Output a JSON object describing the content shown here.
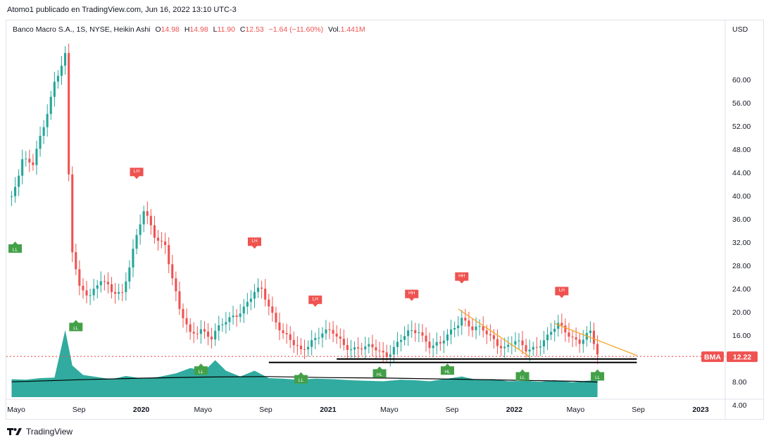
{
  "publisher": {
    "user": "Atomo1",
    "text": "publicado en TradingView.com, Jun 16, 2022 13:10 UTC-3"
  },
  "legend": {
    "symbol": "Banco Macro S.A., 1S, NYSE, Heikin Ashi",
    "open_label": "O",
    "open": "14.98",
    "high_label": "H",
    "high": "14.98",
    "low_label": "L",
    "low": "11.90",
    "close_label": "C",
    "close": "12.53",
    "change": "−1.64 (−11.60%)",
    "volume_label": "Vol.",
    "volume": "1.441M"
  },
  "footer": {
    "brand": "TradingView"
  },
  "colors": {
    "up": "#26a69a",
    "down": "#ef5350",
    "volume": "#26a69a",
    "trend": "#f5a623",
    "support": "#000000",
    "price_line": "#ef5350",
    "label_high": "#ef5350",
    "label_low": "#43a047"
  },
  "chart_data": {
    "type": "candlestick",
    "currency_label": "USD",
    "ylim": [
      2,
      66
    ],
    "y_ticks": [
      "60.00",
      "56.00",
      "52.00",
      "48.00",
      "44.00",
      "40.00",
      "36.00",
      "32.00",
      "28.00",
      "24.00",
      "20.00",
      "16.00",
      "12.00",
      "8.00",
      "4.00"
    ],
    "x_ticks": [
      {
        "t": "2019-05-01",
        "label": "Mayo",
        "bold": false
      },
      {
        "t": "2019-09-01",
        "label": "Sep",
        "bold": false
      },
      {
        "t": "2020-01-01",
        "label": "2020",
        "bold": true
      },
      {
        "t": "2020-05-01",
        "label": "Mayo",
        "bold": false
      },
      {
        "t": "2020-09-01",
        "label": "Sep",
        "bold": false
      },
      {
        "t": "2021-01-01",
        "label": "2021",
        "bold": true
      },
      {
        "t": "2021-05-01",
        "label": "Mayo",
        "bold": false
      },
      {
        "t": "2021-09-01",
        "label": "Sep",
        "bold": false
      },
      {
        "t": "2022-01-01",
        "label": "2022",
        "bold": true
      },
      {
        "t": "2022-05-01",
        "label": "Mayo",
        "bold": false
      },
      {
        "t": "2022-09-01",
        "label": "Sep",
        "bold": false
      },
      {
        "t": "2023-01-01",
        "label": "2023",
        "bold": true
      }
    ],
    "last_price": {
      "symbol": "BMA",
      "value": "12.22"
    },
    "price_points": [
      [
        "2019-04-22",
        40.0
      ],
      [
        "2019-05-13",
        46.5
      ],
      [
        "2019-06-03",
        45.0
      ],
      [
        "2019-06-24",
        52.0
      ],
      [
        "2019-07-15",
        60.0
      ],
      [
        "2019-08-05",
        64.0
      ],
      [
        "2019-08-12",
        43.0
      ],
      [
        "2019-08-19",
        30.0
      ],
      [
        "2019-09-02",
        24.0
      ],
      [
        "2019-09-23",
        23.5
      ],
      [
        "2019-10-14",
        25.5
      ],
      [
        "2019-11-04",
        23.0
      ],
      [
        "2019-11-25",
        23.5
      ],
      [
        "2019-12-16",
        31.0
      ],
      [
        "2020-01-06",
        37.0
      ],
      [
        "2020-01-27",
        33.0
      ],
      [
        "2020-02-17",
        32.0
      ],
      [
        "2020-03-02",
        26.0
      ],
      [
        "2020-03-16",
        20.0
      ],
      [
        "2020-04-06",
        16.0
      ],
      [
        "2020-04-27",
        17.5
      ],
      [
        "2020-05-18",
        15.5
      ],
      [
        "2020-06-08",
        17.5
      ],
      [
        "2020-06-29",
        19.5
      ],
      [
        "2020-07-20",
        21.0
      ],
      [
        "2020-08-10",
        23.0
      ],
      [
        "2020-08-24",
        23.5
      ],
      [
        "2020-09-14",
        20.0
      ],
      [
        "2020-10-05",
        16.5
      ],
      [
        "2020-10-26",
        14.0
      ],
      [
        "2020-11-09",
        13.0
      ],
      [
        "2020-11-30",
        15.5
      ],
      [
        "2020-12-21",
        16.5
      ],
      [
        "2021-01-11",
        16.0
      ],
      [
        "2021-02-01",
        14.5
      ],
      [
        "2021-02-22",
        14.0
      ],
      [
        "2021-03-15",
        13.5
      ],
      [
        "2021-04-05",
        13.5
      ],
      [
        "2021-04-26",
        13.0
      ],
      [
        "2021-05-17",
        14.5
      ],
      [
        "2021-06-07",
        16.0
      ],
      [
        "2021-06-28",
        17.0
      ],
      [
        "2021-07-19",
        14.5
      ],
      [
        "2021-08-09",
        14.0
      ],
      [
        "2021-08-30",
        16.5
      ],
      [
        "2021-09-20",
        19.5
      ],
      [
        "2021-10-11",
        17.0
      ],
      [
        "2021-11-01",
        16.5
      ],
      [
        "2021-11-22",
        15.5
      ],
      [
        "2021-12-13",
        14.0
      ],
      [
        "2022-01-03",
        14.5
      ],
      [
        "2022-01-24",
        13.5
      ],
      [
        "2022-02-14",
        14.5
      ],
      [
        "2022-03-07",
        15.5
      ],
      [
        "2022-03-28",
        17.5
      ],
      [
        "2022-04-18",
        16.5
      ],
      [
        "2022-05-09",
        15.0
      ],
      [
        "2022-05-30",
        16.0
      ],
      [
        "2022-06-13",
        12.5
      ]
    ],
    "volume_points": [
      [
        "2019-04-22",
        3.4
      ],
      [
        "2019-05-20",
        3.3
      ],
      [
        "2019-06-17",
        3.6
      ],
      [
        "2019-07-15",
        3.7
      ],
      [
        "2019-08-05",
        12.7
      ],
      [
        "2019-08-19",
        6.0
      ],
      [
        "2019-09-09",
        4.2
      ],
      [
        "2019-10-07",
        3.8
      ],
      [
        "2019-11-04",
        3.4
      ],
      [
        "2019-12-02",
        4.0
      ],
      [
        "2020-01-06",
        3.5
      ],
      [
        "2020-02-03",
        3.8
      ],
      [
        "2020-03-09",
        4.5
      ],
      [
        "2020-04-06",
        5.5
      ],
      [
        "2020-05-04",
        5.0
      ],
      [
        "2020-05-25",
        7.0
      ],
      [
        "2020-06-15",
        5.0
      ],
      [
        "2020-07-13",
        3.9
      ],
      [
        "2020-08-10",
        5.0
      ],
      [
        "2020-09-07",
        3.6
      ],
      [
        "2020-10-05",
        3.5
      ],
      [
        "2020-11-02",
        3.3
      ],
      [
        "2020-12-07",
        3.5
      ],
      [
        "2021-01-11",
        3.4
      ],
      [
        "2021-02-15",
        3.2
      ],
      [
        "2021-03-15",
        3.1
      ],
      [
        "2021-04-19",
        3.0
      ],
      [
        "2021-05-24",
        3.3
      ],
      [
        "2021-06-21",
        3.2
      ],
      [
        "2021-07-19",
        3.0
      ],
      [
        "2021-08-23",
        3.5
      ],
      [
        "2021-09-20",
        3.9
      ],
      [
        "2021-10-18",
        3.3
      ],
      [
        "2021-11-22",
        3.4
      ],
      [
        "2021-12-20",
        3.0
      ],
      [
        "2022-01-24",
        3.1
      ],
      [
        "2022-02-21",
        2.9
      ],
      [
        "2022-03-21",
        3.2
      ],
      [
        "2022-04-25",
        2.8
      ],
      [
        "2022-05-23",
        3.1
      ],
      [
        "2022-06-13",
        3.2
      ]
    ],
    "volume_ma": [
      [
        "2019-04-22",
        2.9
      ],
      [
        "2019-09-02",
        3.3
      ],
      [
        "2020-01-06",
        3.6
      ],
      [
        "2020-05-04",
        3.8
      ],
      [
        "2020-09-07",
        3.9
      ],
      [
        "2021-01-04",
        3.7
      ],
      [
        "2021-05-03",
        3.6
      ],
      [
        "2021-09-06",
        3.4
      ],
      [
        "2022-01-03",
        3.2
      ],
      [
        "2022-05-02",
        3.0
      ],
      [
        "2022-06-13",
        2.85
      ]
    ],
    "pivot_labels": [
      {
        "t": "2019-04-29",
        "price": 32.0,
        "text": "LL",
        "kind": "low"
      },
      {
        "t": "2019-08-26",
        "price": 18.5,
        "text": "LL",
        "kind": "low"
      },
      {
        "t": "2019-12-23",
        "price": 43.0,
        "text": "LH",
        "kind": "high"
      },
      {
        "t": "2020-04-27",
        "price": 11.0,
        "text": "LL",
        "kind": "low"
      },
      {
        "t": "2020-08-10",
        "price": 31.0,
        "text": "LH",
        "kind": "high"
      },
      {
        "t": "2020-11-09",
        "price": 9.5,
        "text": "LL",
        "kind": "low"
      },
      {
        "t": "2020-12-07",
        "price": 21.0,
        "text": "LH",
        "kind": "high"
      },
      {
        "t": "2021-04-12",
        "price": 10.5,
        "text": "HL",
        "kind": "low"
      },
      {
        "t": "2021-06-14",
        "price": 22.0,
        "text": "HH",
        "kind": "high"
      },
      {
        "t": "2021-08-23",
        "price": 11.0,
        "text": "HL",
        "kind": "low"
      },
      {
        "t": "2021-09-20",
        "price": 25.0,
        "text": "HH",
        "kind": "high"
      },
      {
        "t": "2022-01-17",
        "price": 10.0,
        "text": "LL",
        "kind": "low"
      },
      {
        "t": "2022-04-04",
        "price": 22.5,
        "text": "LH",
        "kind": "high"
      },
      {
        "t": "2022-06-13",
        "price": 10.0,
        "text": "LL",
        "kind": "low"
      }
    ],
    "trend_lines": [
      {
        "from": [
          "2021-09-13",
          20.5
        ],
        "to": [
          "2022-01-31",
          12.3
        ]
      },
      {
        "from": [
          "2022-03-21",
          18.0
        ],
        "to": [
          "2022-08-29",
          12.5
        ]
      }
    ],
    "support_lines": [
      {
        "from": [
          "2020-09-07",
          11.3
        ],
        "to": [
          "2022-08-29",
          11.3
        ]
      },
      {
        "from": [
          "2021-01-18",
          11.9
        ],
        "to": [
          "2022-08-29",
          11.9
        ]
      }
    ]
  }
}
